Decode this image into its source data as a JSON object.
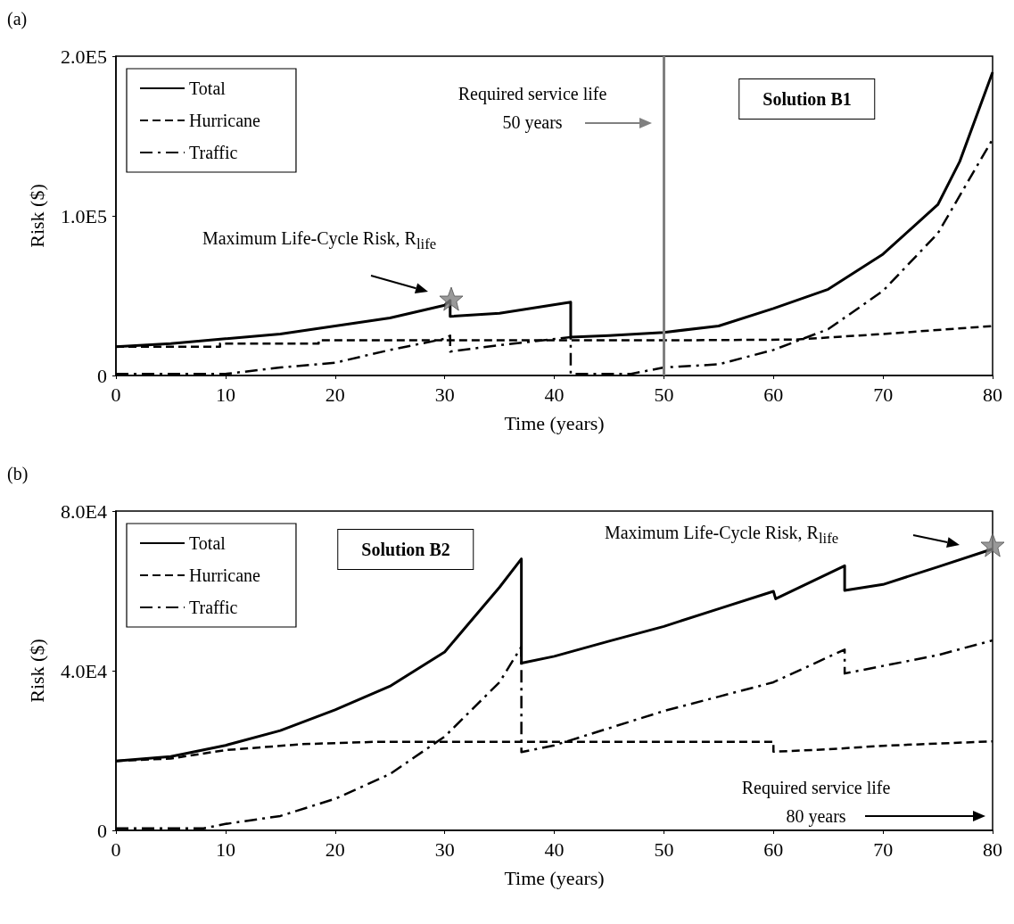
{
  "chart_data": [
    {
      "type": "line",
      "title": "(a)",
      "xlabel": "Time (years)",
      "ylabel": "Risk ($)",
      "xlim": [
        0,
        80
      ],
      "xticks": [
        0,
        10,
        20,
        30,
        40,
        50,
        60,
        70,
        80
      ],
      "ylim": [
        0,
        200000
      ],
      "yticks": [
        0,
        {
          "value": 100000,
          "label": "1.0E5"
        },
        {
          "value": 200000,
          "label": "2.0E5"
        }
      ],
      "grid": false,
      "legend": "top left",
      "series": [
        {
          "name": "Total",
          "color": "#000000",
          "line_style": "solid",
          "x": [
            0,
            5,
            10,
            15,
            20,
            25,
            30,
            30.5,
            30.5,
            35,
            41.5,
            41.5,
            45,
            50,
            55,
            60,
            65,
            70,
            75,
            77,
            80
          ],
          "values": [
            18000,
            20000,
            23000,
            26000,
            31000,
            36000,
            44000,
            47000,
            37000,
            39000,
            46000,
            24000,
            25000,
            27000,
            31000,
            42000,
            54000,
            76000,
            107000,
            134000,
            190000
          ]
        },
        {
          "name": "Hurricane",
          "color": "#000000",
          "line_style": "dashed",
          "x": [
            0,
            9.5,
            9.5,
            18.5,
            18.5,
            41.5,
            50,
            62,
            70,
            80
          ],
          "values": [
            18000,
            18000,
            20000,
            20000,
            22000,
            22000,
            22000,
            22500,
            26000,
            31000
          ]
        },
        {
          "name": "Traffic",
          "color": "#000000",
          "line_style": "dashdot",
          "x": [
            0,
            10,
            15,
            20,
            25,
            30,
            30.5,
            30.5,
            35,
            41.5,
            41.5,
            47,
            50,
            55,
            60,
            65,
            70,
            75,
            80
          ],
          "values": [
            1000,
            1000,
            5000,
            8000,
            16000,
            23000,
            25000,
            15000,
            19000,
            24000,
            1000,
            1000,
            5000,
            7000,
            16000,
            29000,
            53000,
            89000,
            148000
          ]
        },
        {
          "type": "scatter",
          "marker": "star",
          "color": "#808080",
          "x": [
            30.6
          ],
          "values": [
            48000
          ]
        }
      ],
      "ref_lines": [
        {
          "axis": "x",
          "value": 50,
          "color": "#808080"
        }
      ],
      "annotations": [
        "Solution B1",
        "Required service life\n50 years",
        "Maximum Life-Cycle Risk, R$_{life}$"
      ]
    },
    {
      "type": "line",
      "title": "(b)",
      "xlabel": "Time (years)",
      "ylabel": "Risk ($)",
      "xlim": [
        0,
        80
      ],
      "xticks": [
        0,
        10,
        20,
        30,
        40,
        50,
        60,
        70,
        80
      ],
      "ylim": [
        0,
        80000
      ],
      "yticks": [
        0,
        {
          "value": 40000,
          "label": "4.0E4"
        },
        {
          "value": 80000,
          "label": "8.0E4"
        }
      ],
      "grid": false,
      "legend": "top left",
      "series": [
        {
          "name": "Total",
          "color": "#000000",
          "line_style": "solid",
          "x": [
            0,
            5,
            10,
            15,
            20,
            25,
            30,
            35,
            37,
            37,
            40,
            45,
            50,
            55,
            60,
            60.2,
            66.5,
            66.5,
            70,
            75,
            80
          ],
          "values": [
            17400,
            18500,
            21300,
            25000,
            30200,
            36100,
            44700,
            60900,
            68000,
            41900,
            43600,
            47400,
            51100,
            55500,
            59900,
            58000,
            66300,
            60100,
            61600,
            66000,
            70500
          ]
        },
        {
          "name": "Hurricane",
          "color": "#000000",
          "line_style": "dashed",
          "x": [
            0,
            5,
            10,
            17,
            24,
            37,
            60,
            60,
            65,
            70,
            80
          ],
          "values": [
            17400,
            18000,
            20100,
            21600,
            22200,
            22200,
            22200,
            19700,
            20300,
            21200,
            22300
          ]
        },
        {
          "name": "Traffic",
          "color": "#000000",
          "line_style": "dashdot",
          "x": [
            0,
            8,
            10,
            15,
            20,
            25,
            30,
            35,
            37,
            37,
            40,
            45,
            50,
            55,
            60,
            66.5,
            66.5,
            70,
            75,
            80
          ],
          "values": [
            500,
            500,
            1600,
            3600,
            7900,
            14100,
            23500,
            37100,
            46000,
            19600,
            21300,
            25600,
            29900,
            33500,
            37100,
            45300,
            39300,
            41200,
            43900,
            47600
          ]
        },
        {
          "type": "scatter",
          "marker": "star",
          "color": "#808080",
          "x": [
            80
          ],
          "values": [
            71500
          ]
        }
      ],
      "annotations": [
        "Solution B2",
        "Maximum Life-Cycle Risk, R$_{life}$",
        "Required service life\n80 years"
      ]
    }
  ]
}
